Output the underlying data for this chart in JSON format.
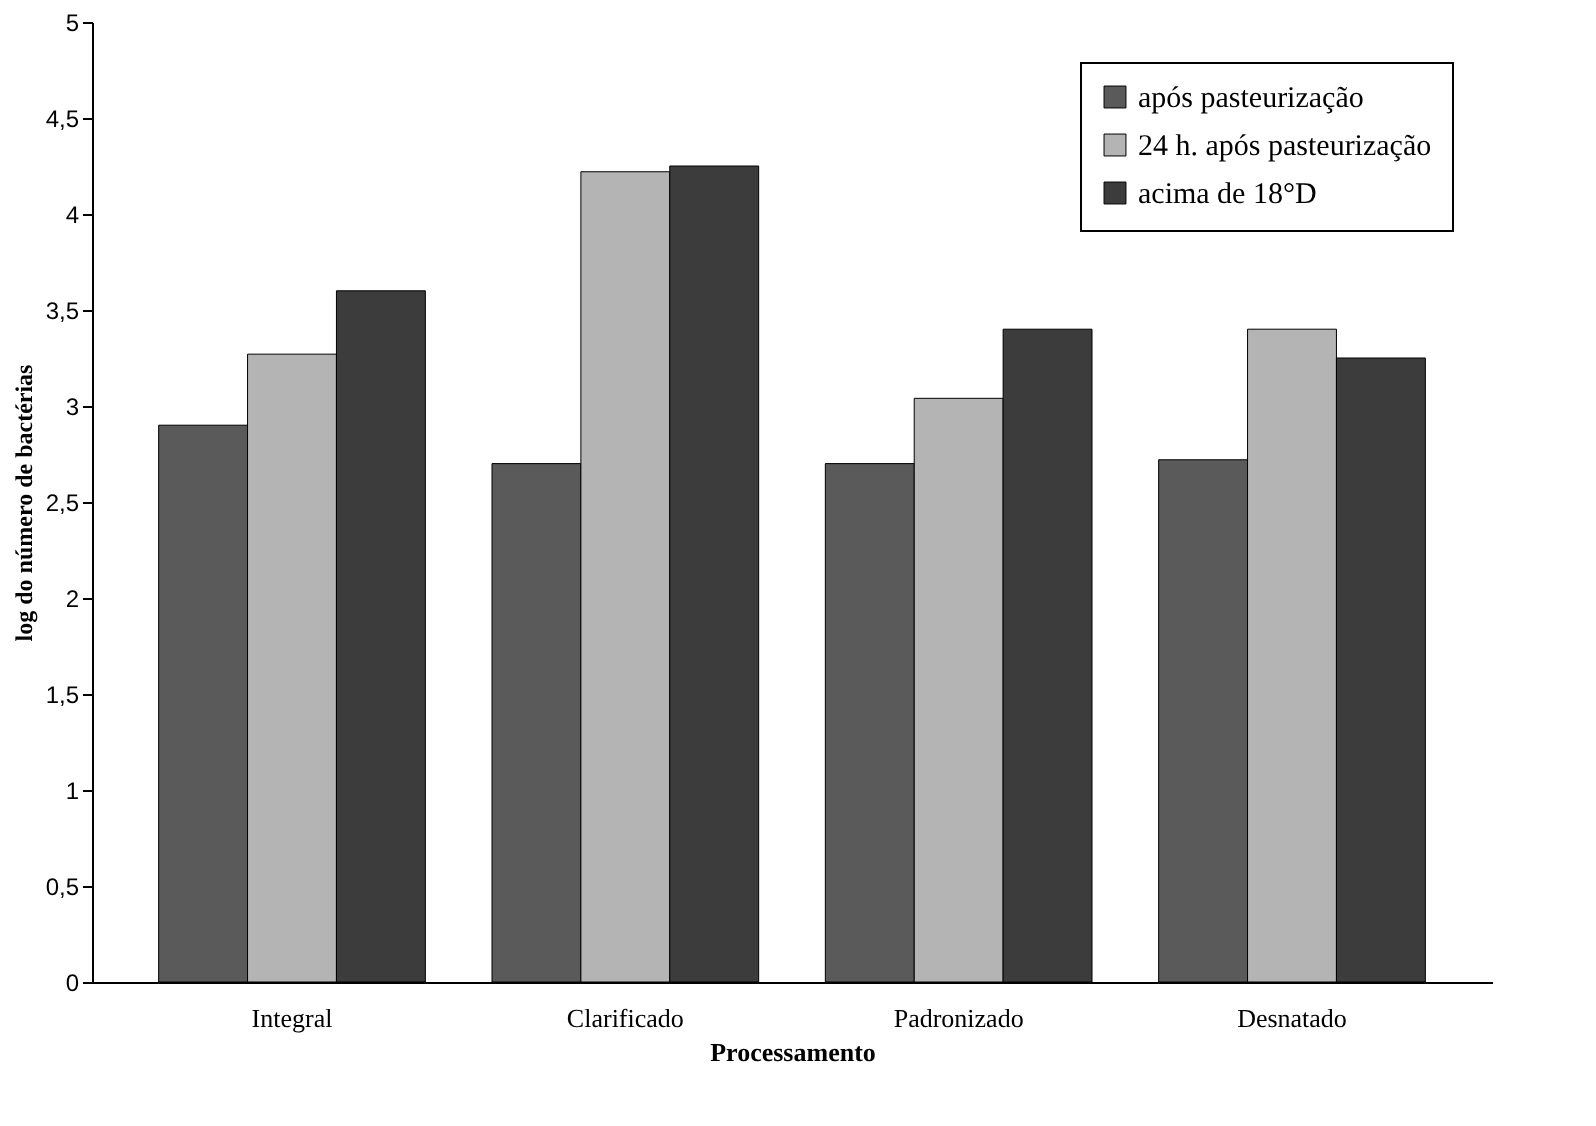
{
  "chart_data": {
    "type": "bar",
    "xlabel": "Processamento",
    "ylabel": "log do número de bactérias",
    "categories": [
      "Integral",
      "Clarificado",
      "Padronizado",
      "Desnatado"
    ],
    "series": [
      {
        "name": "após pasteurização",
        "color": "#5a5a5a",
        "values": [
          2.9,
          2.7,
          2.7,
          2.72
        ]
      },
      {
        "name": "24 h. após pasteurização",
        "color": "#b4b4b4",
        "values": [
          3.27,
          4.22,
          3.04,
          3.4
        ]
      },
      {
        "name": "acima de 18°D",
        "color": "#3c3c3c",
        "values": [
          3.6,
          4.25,
          3.4,
          3.25
        ]
      }
    ],
    "ylim": [
      0,
      5
    ],
    "yticks": [
      0,
      {
        "value": 0.5,
        "label": "0,5"
      },
      1,
      {
        "value": 1.5,
        "label": "1,5"
      },
      2,
      {
        "value": 2.5,
        "label": "2,5"
      },
      3,
      {
        "value": 3.5,
        "label": "3,5"
      },
      4,
      {
        "value": 4.5,
        "label": "4,5"
      },
      5
    ],
    "grid": false,
    "legend": "top right"
  }
}
